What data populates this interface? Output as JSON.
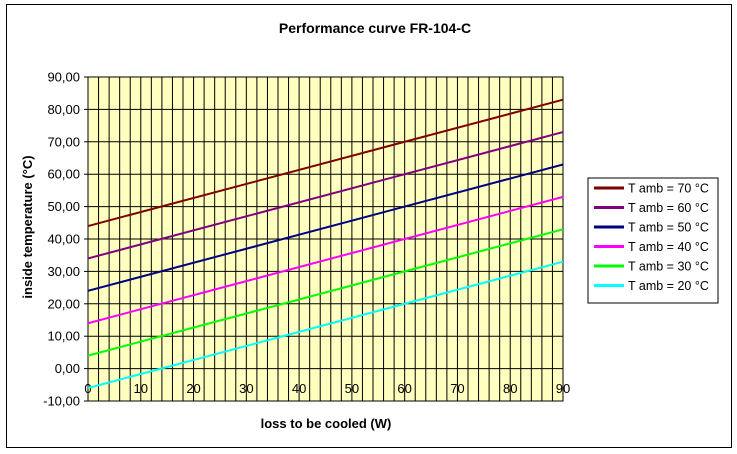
{
  "chart_data": {
    "type": "line",
    "title": "Performance curve FR-104-C",
    "xlabel": "loss to be cooled (W)",
    "ylabel": "inside temperature (°C)",
    "xlim": [
      0,
      90
    ],
    "ylim": [
      -10,
      90
    ],
    "x_ticks": [
      "0",
      "10",
      "20",
      "30",
      "40",
      "50",
      "60",
      "70",
      "80",
      "90"
    ],
    "y_ticks": [
      "-10,00",
      "0,00",
      "10,00",
      "20,00",
      "30,00",
      "40,00",
      "50,00",
      "60,00",
      "70,00",
      "80,00",
      "90,00"
    ],
    "grid": true,
    "plot_background": "#ffffc0",
    "legend_position": "right",
    "series": [
      {
        "name": "T amb = 70 °C",
        "color": "#800000",
        "x": [
          0,
          90
        ],
        "y": [
          44,
          83
        ]
      },
      {
        "name": "T amb = 60 °C",
        "color": "#800080",
        "x": [
          0,
          90
        ],
        "y": [
          34,
          73
        ]
      },
      {
        "name": "T amb = 50 °C",
        "color": "#000080",
        "x": [
          0,
          90
        ],
        "y": [
          24,
          63
        ]
      },
      {
        "name": "T amb = 40 °C",
        "color": "#ff00ff",
        "x": [
          0,
          90
        ],
        "y": [
          14,
          53
        ]
      },
      {
        "name": "T amb = 30 °C",
        "color": "#00ff00",
        "x": [
          0,
          90
        ],
        "y": [
          4,
          43
        ]
      },
      {
        "name": "T amb = 20 °C",
        "color": "#00ffff",
        "x": [
          0,
          90
        ],
        "y": [
          -6,
          33
        ]
      }
    ]
  }
}
